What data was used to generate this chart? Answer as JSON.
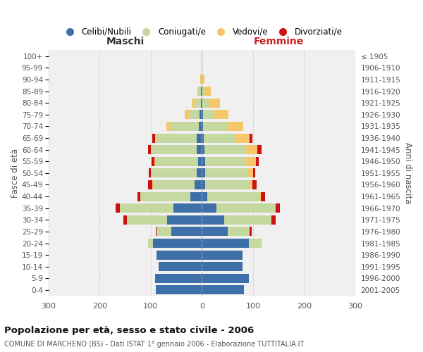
{
  "age_groups": [
    "0-4",
    "5-9",
    "10-14",
    "15-19",
    "20-24",
    "25-29",
    "30-34",
    "35-39",
    "40-44",
    "45-49",
    "50-54",
    "55-59",
    "60-64",
    "65-69",
    "70-74",
    "75-79",
    "80-84",
    "85-89",
    "90-94",
    "95-99",
    "100+"
  ],
  "birth_years": [
    "2001-2005",
    "1996-2000",
    "1991-1995",
    "1986-1990",
    "1981-1985",
    "1976-1980",
    "1971-1975",
    "1966-1970",
    "1961-1965",
    "1956-1960",
    "1951-1955",
    "1946-1950",
    "1941-1945",
    "1936-1940",
    "1931-1935",
    "1926-1930",
    "1921-1925",
    "1916-1920",
    "1911-1915",
    "1906-1910",
    "≤ 1905"
  ],
  "males_celibi": [
    90,
    92,
    85,
    88,
    95,
    60,
    68,
    55,
    22,
    14,
    10,
    8,
    10,
    10,
    6,
    4,
    2,
    2,
    0,
    0,
    0
  ],
  "males_coniugati": [
    0,
    0,
    0,
    0,
    10,
    28,
    78,
    105,
    98,
    82,
    88,
    83,
    88,
    78,
    55,
    20,
    12,
    5,
    2,
    0,
    0
  ],
  "males_vedovi": [
    0,
    0,
    0,
    0,
    0,
    0,
    0,
    1,
    1,
    1,
    1,
    2,
    2,
    4,
    9,
    10,
    6,
    2,
    1,
    0,
    0
  ],
  "males_divorziati": [
    0,
    0,
    0,
    0,
    0,
    2,
    8,
    8,
    5,
    8,
    5,
    5,
    5,
    5,
    0,
    0,
    0,
    0,
    0,
    0,
    0
  ],
  "females_nubili": [
    82,
    92,
    80,
    80,
    92,
    50,
    44,
    28,
    10,
    6,
    6,
    6,
    5,
    4,
    3,
    2,
    1,
    1,
    0,
    0,
    0
  ],
  "females_coniugate": [
    0,
    0,
    0,
    0,
    25,
    43,
    92,
    115,
    104,
    88,
    84,
    80,
    80,
    62,
    48,
    22,
    12,
    4,
    0,
    0,
    0
  ],
  "females_vedove": [
    0,
    0,
    0,
    0,
    0,
    0,
    0,
    1,
    2,
    5,
    10,
    20,
    24,
    28,
    30,
    28,
    22,
    12,
    5,
    1,
    0
  ],
  "females_divorziate": [
    0,
    0,
    0,
    0,
    0,
    5,
    8,
    8,
    8,
    8,
    4,
    5,
    8,
    5,
    0,
    0,
    0,
    0,
    0,
    0,
    0
  ],
  "colors_celibi": "#3d6fa8",
  "colors_coniugati": "#c5d8a0",
  "colors_vedovi": "#f5c76a",
  "colors_divorziati": "#cc1111",
  "title": "Popolazione per età, sesso e stato civile - 2006",
  "subtitle": "COMUNE DI MARCHENO (BS) - Dati ISTAT 1° gennaio 2006 - Elaborazione TUTTITALIA.IT",
  "legend_labels": [
    "Celibi/Nubili",
    "Coniugati/e",
    "Vedovi/e",
    "Divorziati/e"
  ],
  "maschi_label": "Maschi",
  "femmine_label": "Femmine",
  "ylabel_left": "Fasce di età",
  "ylabel_right": "Anni di nascita",
  "xlim": 300,
  "bar_height": 0.78,
  "background_color": "#ffffff",
  "plot_bg_color": "#f0f0f0",
  "grid_color": "#cccccc"
}
